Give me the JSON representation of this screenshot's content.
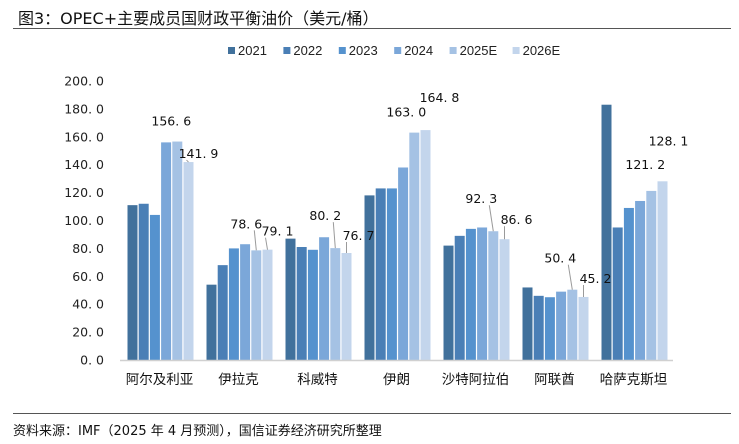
{
  "title": "图3：OPEC+主要成员国财政平衡油价（美元/桶）",
  "source": "资料来源：IMF（2025 年 4 月预测），国信证券经济研究所整理",
  "chart_data": {
    "type": "bar",
    "title": "图3：OPEC+主要成员国财政平衡油价（美元/桶）",
    "xlabel": "",
    "ylabel": "",
    "ylim": [
      0,
      200
    ],
    "yticks": [
      "0.0",
      "20.0",
      "40.0",
      "60.0",
      "80.0",
      "100.0",
      "120.0",
      "140.0",
      "160.0",
      "180.0",
      "200.0"
    ],
    "grid": false,
    "legend_position": "top",
    "categories": [
      "阿尔及利亚",
      "伊拉克",
      "科威特",
      "伊朗",
      "沙特阿拉伯",
      "阿联酋",
      "哈萨克斯坦"
    ],
    "series": [
      {
        "name": "2021",
        "color": "#41719C",
        "values": [
          111,
          54,
          87,
          118,
          82,
          52,
          183
        ]
      },
      {
        "name": "2022",
        "color": "#4A7FB6",
        "values": [
          112,
          68,
          81,
          123,
          89,
          46,
          95
        ]
      },
      {
        "name": "2023",
        "color": "#5592CE",
        "values": [
          104,
          80,
          79,
          123,
          94,
          45,
          109
        ]
      },
      {
        "name": "2024",
        "color": "#7BA7D9",
        "values": [
          156,
          83,
          88,
          138,
          95,
          49,
          114
        ]
      },
      {
        "name": "2025E",
        "color": "#A5C2E4",
        "values": [
          156.6,
          78.6,
          80.2,
          163.0,
          92.3,
          50.4,
          121.2
        ]
      },
      {
        "name": "2026E",
        "color": "#C3D5EC",
        "values": [
          141.9,
          79.1,
          76.7,
          164.8,
          86.6,
          45.2,
          128.1
        ]
      }
    ],
    "data_labels": [
      {
        "category": 0,
        "series": 4,
        "text": "156.6"
      },
      {
        "category": 0,
        "series": 5,
        "text": "141.9"
      },
      {
        "category": 1,
        "series": 4,
        "text": "78.6"
      },
      {
        "category": 1,
        "series": 5,
        "text": "79.1"
      },
      {
        "category": 2,
        "series": 4,
        "text": "80.2"
      },
      {
        "category": 2,
        "series": 5,
        "text": "76.7"
      },
      {
        "category": 3,
        "series": 4,
        "text": "163.0"
      },
      {
        "category": 3,
        "series": 5,
        "text": "164.8"
      },
      {
        "category": 4,
        "series": 4,
        "text": "92.3"
      },
      {
        "category": 4,
        "series": 5,
        "text": "86.6"
      },
      {
        "category": 5,
        "series": 4,
        "text": "50.4"
      },
      {
        "category": 5,
        "series": 5,
        "text": "45.2"
      },
      {
        "category": 6,
        "series": 4,
        "text": "121.2"
      },
      {
        "category": 6,
        "series": 5,
        "text": "128.1"
      }
    ]
  }
}
